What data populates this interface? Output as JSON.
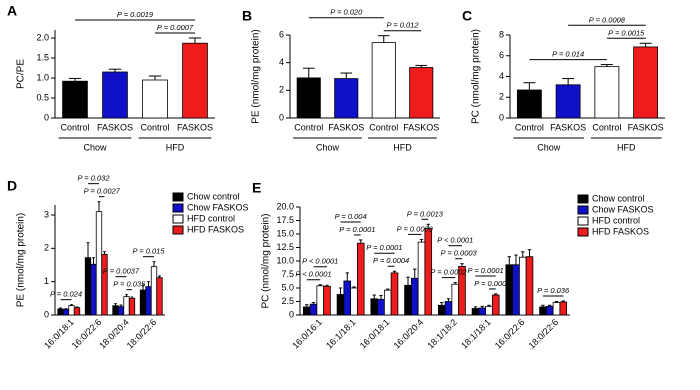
{
  "chart_data": [
    {
      "type": "bar",
      "panel": "A",
      "y_label": "PC/PE",
      "categories": [
        "Control",
        "FASKOS",
        "Control",
        "FASKOS"
      ],
      "values": [
        0.92,
        1.15,
        0.95,
        1.87
      ],
      "errors": [
        0.07,
        0.07,
        0.1,
        0.13
      ],
      "colors": [
        "#000000",
        "#1010c8",
        "#ffffff",
        "#ee1c1c"
      ],
      "groups": [
        {
          "label": "Chow",
          "from": 0,
          "to": 1
        },
        {
          "label": "HFD",
          "from": 2,
          "to": 3
        }
      ],
      "ylim": [
        0,
        2.2
      ],
      "yticks": [
        0,
        0.5,
        {
          "value": 1,
          "label": "1.0"
        },
        1.5,
        {
          "value": 2,
          "label": "2.0"
        }
      ],
      "annotations": [
        {
          "label": "P = 0.0007",
          "from": 2,
          "to": 3
        },
        {
          "label": "P = 0.0019",
          "from": 0,
          "to": 3
        }
      ]
    },
    {
      "type": "bar",
      "panel": "B",
      "y_label": "PE (nmol/mg protein)",
      "categories": [
        "Control",
        "FASKOS",
        "Control",
        "FASKOS"
      ],
      "values": [
        2.9,
        2.85,
        5.45,
        3.65
      ],
      "errors": [
        0.7,
        0.4,
        0.5,
        0.15
      ],
      "colors": [
        "#000000",
        "#1010c8",
        "#ffffff",
        "#ee1c1c"
      ],
      "groups": [
        {
          "label": "Chow",
          "from": 0,
          "to": 1
        },
        {
          "label": "HFD",
          "from": 2,
          "to": 3
        }
      ],
      "ylim": [
        0,
        6
      ],
      "yticks": [
        0,
        2,
        4,
        6
      ],
      "annotations": [
        {
          "label": "P = 0.012",
          "from": 2,
          "to": 3
        },
        {
          "label": "P = 0.020",
          "from": 0,
          "to": 2
        }
      ]
    },
    {
      "type": "bar",
      "panel": "C",
      "y_label": "PC (nmol/mg protein)",
      "categories": [
        "Control",
        "FASKOS",
        "Control",
        "FASKOS"
      ],
      "values": [
        2.7,
        3.2,
        4.95,
        6.85
      ],
      "errors": [
        0.7,
        0.6,
        0.2,
        0.35
      ],
      "colors": [
        "#000000",
        "#1010c8",
        "#ffffff",
        "#ee1c1c"
      ],
      "groups": [
        {
          "label": "Chow",
          "from": 0,
          "to": 1
        },
        {
          "label": "HFD",
          "from": 2,
          "to": 3
        }
      ],
      "ylim": [
        0,
        8
      ],
      "yticks": [
        0,
        2,
        4,
        6,
        8
      ],
      "annotations": [
        {
          "label": "P = 0.014",
          "from": 0,
          "to": 2
        },
        {
          "label": "P = 0.0015",
          "from": 2,
          "to": 3
        },
        {
          "label": "P = 0.0008",
          "from": 1,
          "to": 3
        }
      ]
    },
    {
      "type": "bar",
      "panel": "D",
      "y_label": "PE (nmol/mg protein)",
      "categories": [
        "16:0/18:1",
        "16:0/22:6",
        "18:0/20:4",
        "18:0/22:6"
      ],
      "series": [
        {
          "name": "Chow control",
          "color": "#000000",
          "values": [
            0.18,
            1.72,
            0.28,
            0.75
          ],
          "errors": [
            0.03,
            0.45,
            0.06,
            0.15
          ]
        },
        {
          "name": "Chow FASKOS",
          "color": "#1010c8",
          "values": [
            0.17,
            1.52,
            0.25,
            0.85
          ],
          "errors": [
            0.02,
            0.2,
            0.05,
            0.15
          ]
        },
        {
          "name": "HFD control",
          "color": "#ffffff",
          "values": [
            0.28,
            3.1,
            0.55,
            1.45
          ],
          "errors": [
            0.03,
            0.3,
            0.06,
            0.15
          ]
        },
        {
          "name": "HFD FASKOS",
          "color": "#ee1c1c",
          "values": [
            0.22,
            1.82,
            0.5,
            1.12
          ],
          "errors": [
            0.02,
            0.08,
            0.04,
            0.05
          ]
        }
      ],
      "ylim": [
        0,
        3.3
      ],
      "yticks": [
        0,
        1,
        2,
        3
      ],
      "annotations": [
        {
          "label": "P = 0.024",
          "category": 0,
          "from": 0,
          "to": 2
        },
        {
          "label": "P = 0.0027",
          "category": 1,
          "from": 2,
          "to": 3
        },
        {
          "label": "P = 0.032",
          "category": 1,
          "from": 0,
          "to": 2
        },
        {
          "label": "P = 0.035",
          "category": 2,
          "from": 2,
          "to": 3
        },
        {
          "label": "P = 0.0037",
          "category": 2,
          "from": 0,
          "to": 2
        },
        {
          "label": "P = 0.015",
          "category": 3,
          "from": 0,
          "to": 2
        }
      ]
    },
    {
      "type": "bar",
      "panel": "E",
      "y_label": "PC (nmol/mg protein)",
      "categories": [
        "16:0/16:1",
        "16:1/18:1",
        "16:0/18:1",
        "16:0/20:4",
        "18:1/18:2",
        "18:1/18:1",
        "16:0/22:6",
        "18:0/22:6"
      ],
      "series": [
        {
          "name": "Chow control",
          "color": "#000000",
          "values": [
            1.5,
            3.8,
            3.0,
            5.5,
            1.8,
            1.2,
            9.3,
            1.5
          ],
          "errors": [
            0.4,
            1.2,
            0.7,
            1.5,
            0.5,
            0.3,
            1.5,
            0.3
          ]
        },
        {
          "name": "Chow FASKOS",
          "color": "#1010c8",
          "values": [
            2.0,
            6.3,
            2.9,
            6.8,
            2.5,
            1.3,
            9.3,
            1.6
          ],
          "errors": [
            0.3,
            1.5,
            0.7,
            1.7,
            0.5,
            0.3,
            1.8,
            0.2
          ]
        },
        {
          "name": "HFD control",
          "color": "#ffffff",
          "values": [
            5.4,
            5.0,
            4.6,
            13.5,
            5.7,
            1.6,
            10.7,
            2.3
          ],
          "errors": [
            0.2,
            0.2,
            0.2,
            0.5,
            0.3,
            0.2,
            1.0,
            0.2
          ]
        },
        {
          "name": "HFD FASKOS",
          "color": "#ee1c1c",
          "values": [
            5.3,
            13.3,
            7.8,
            16.0,
            9.0,
            3.7,
            10.8,
            2.4
          ],
          "errors": [
            0.2,
            0.6,
            0.3,
            0.8,
            0.5,
            0.2,
            1.3,
            0.2
          ]
        }
      ],
      "ylim": [
        0,
        20
      ],
      "yticks": [
        0,
        2.5,
        {
          "value": 5,
          "label": "5.0"
        },
        7.5,
        {
          "value": 10,
          "label": "10.0"
        },
        12.5,
        {
          "value": 15,
          "label": "15.0"
        },
        17.5,
        {
          "value": 20,
          "label": "20.0"
        }
      ],
      "annotations": [
        {
          "label": "P < 0.0001",
          "category": 0,
          "from": 0,
          "to": 2
        },
        {
          "label": "P < 0.0001",
          "category": 0,
          "from": 1,
          "to": 3
        },
        {
          "label": "P = 0.0001",
          "category": 1,
          "from": 2,
          "to": 3
        },
        {
          "label": "P = 0.004",
          "category": 1,
          "from": 0,
          "to": 3
        },
        {
          "label": "P = 0.0004",
          "category": 2,
          "from": 2,
          "to": 3
        },
        {
          "label": "P = 0.0001",
          "category": 2,
          "from": 0,
          "to": 3
        },
        {
          "label": "P = 0.0009",
          "category": 3,
          "from": 0,
          "to": 2
        },
        {
          "label": "P = 0.0013",
          "category": 3,
          "from": 2,
          "to": 3
        },
        {
          "label": "P = 0.0002",
          "category": 4,
          "from": 0,
          "to": 2
        },
        {
          "label": "P = 0.0003",
          "category": 4,
          "from": 2,
          "to": 3
        },
        {
          "label": "P < 0.0001",
          "category": 4,
          "from": 1,
          "to": 3
        },
        {
          "label": "P = 0.0001",
          "category": 5,
          "from": 2,
          "to": 3
        },
        {
          "label": "P = 0.0001",
          "category": 5,
          "from": 0,
          "to": 3
        },
        {
          "label": "P = 0.036",
          "category": 7,
          "from": 0,
          "to": 3
        }
      ]
    }
  ]
}
